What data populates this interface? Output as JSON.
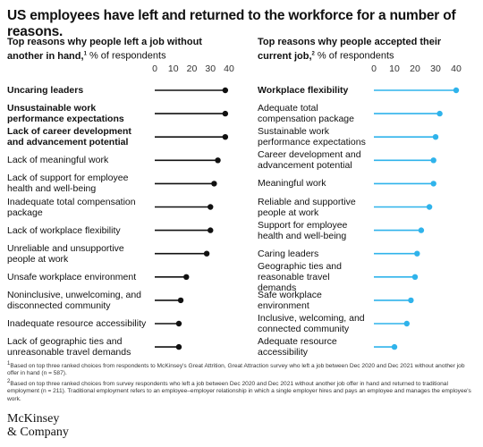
{
  "title": "US employees have left and returned to the workforce for a number of reasons.",
  "chart_data": [
    {
      "type": "lollipop",
      "subtitle": "Top reasons why people left a job without another in hand,",
      "subtitle_mark": "1",
      "unit_label": "% of respondents",
      "categories": [
        "Uncaring leaders",
        "Unsustainable work performance expectations",
        "Lack of career development and advancement potential",
        "Lack of meaningful work",
        "Lack of support for employee health and well-being",
        "Inadequate total compensation package",
        "Lack of workplace flexibility",
        "Unreliable and unsupportive people at work",
        "Unsafe workplace environment",
        "Noninclusive, unwelcoming, and disconnected community",
        "Inadequate resource accessibility",
        "Lack of geographic ties and unreasonable travel demands"
      ],
      "values": [
        38,
        38,
        38,
        34,
        32,
        30,
        30,
        28,
        17,
        14,
        13,
        13
      ],
      "color": "#111111",
      "highlight": 3,
      "xlim": [
        0,
        40
      ],
      "xticks": [
        0,
        10,
        20,
        30,
        40
      ]
    },
    {
      "type": "lollipop",
      "subtitle": "Top reasons why people accepted their current job,",
      "subtitle_mark": "2",
      "unit_label": "% of respondents",
      "categories": [
        "Workplace flexibility",
        "Adequate total compensation package",
        "Sustainable work performance expectations",
        "Career development and advancement potential",
        "Meaningful work",
        "Reliable and supportive people at work",
        "Support for employee health and well-being",
        "Caring leaders",
        "Geographic ties and reasonable travel demands",
        "Safe workplace environment",
        "Inclusive, welcoming, and connected community",
        "Adequate resource accessibility"
      ],
      "values": [
        40,
        32,
        30,
        29,
        29,
        27,
        23,
        21,
        20,
        18,
        16,
        10
      ],
      "color": "#2fb3eb",
      "highlight": 1,
      "xlim": [
        0,
        40
      ],
      "xticks": [
        0,
        10,
        20,
        30,
        40
      ]
    }
  ],
  "footnotes": [
    {
      "mark": "1",
      "text": "Based on top three ranked choices from respondents to McKinsey's Great Attrition, Great Attraction survey who left a job between Dec 2020 and Dec 2021 without another job offer in hand (n = 587)."
    },
    {
      "mark": "2",
      "text": "Based on top three ranked choices from survey respondents who left a job between Dec 2020 and Dec 2021 without another job offer in hand and returned to traditional employment (n = 211). Traditional employment refers to an employee–employer relationship in which a single employer hires and pays an employee and manages the employee's work."
    }
  ],
  "logo": {
    "line1": "McKinsey",
    "line2": "& Company"
  }
}
